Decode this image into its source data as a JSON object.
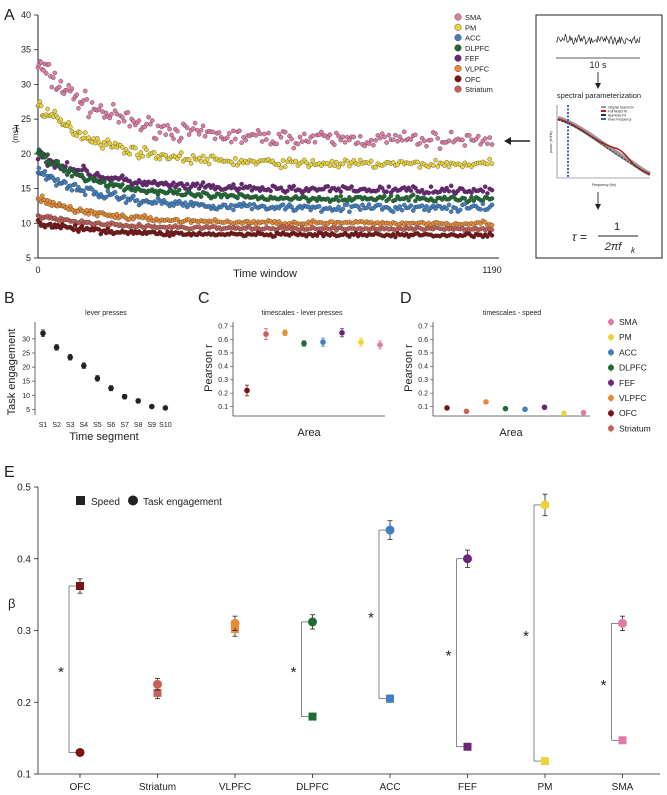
{
  "panels": {
    "a": "A",
    "b": "B",
    "c": "C",
    "d": "D",
    "e": "E"
  },
  "colors": {
    "SMA": "#e07aa7",
    "PM": "#ebd43a",
    "ACC": "#3f7fc2",
    "DLPFC": "#1e6b35",
    "FEF": "#6b2478",
    "VLPFC": "#e88b35",
    "OFC": "#7a1414",
    "Striatum": "#c86058"
  },
  "chart_data": [
    {
      "id": "A",
      "type": "scatter",
      "xlabel": "Time window",
      "ylabel_main": "τ",
      "ylabel_sub": "(ms)",
      "xlim": [
        0,
        1190
      ],
      "xticks": [
        "0",
        "1190"
      ],
      "ylim": [
        5,
        40
      ],
      "yticks": [
        5,
        10,
        15,
        20,
        25,
        30,
        35,
        40
      ],
      "legend": [
        "SMA",
        "PM",
        "ACC",
        "DLPFC",
        "FEF",
        "VLPFC",
        "OFC",
        "Striatum"
      ],
      "series": [
        {
          "name": "SMA",
          "start": 33,
          "end": 22,
          "spread": 2.4
        },
        {
          "name": "PM",
          "start": 27,
          "end": 18.5,
          "spread": 1.3
        },
        {
          "name": "FEF",
          "start": 20,
          "end": 14.8,
          "spread": 1.1
        },
        {
          "name": "DLPFC",
          "start": 20,
          "end": 13.5,
          "spread": 0.9
        },
        {
          "name": "ACC",
          "start": 17.5,
          "end": 12.2,
          "spread": 1.1
        },
        {
          "name": "VLPFC",
          "start": 13.5,
          "end": 10,
          "spread": 0.7
        },
        {
          "name": "Striatum",
          "start": 11,
          "end": 9.2,
          "spread": 0.5
        },
        {
          "name": "OFC",
          "start": 10,
          "end": 8.3,
          "spread": 0.6
        }
      ],
      "inset": {
        "signal_label": "10 s",
        "method": "spectral parameterization",
        "spectrum_legend": [
          "Original Spectrum",
          "Full Model Fit",
          "Aperiodic Fit",
          "Knee Frequency"
        ],
        "spectrum_xlabel": "Frequency (Hz)",
        "spectrum_ylabel": "power (V²/Hz)",
        "formula_lhs": "τ =",
        "formula_num": "1",
        "formula_den": "2πf",
        "formula_sub": "k"
      }
    },
    {
      "id": "B",
      "type": "scatter",
      "title": "lever presses",
      "xlabel": "Time segment",
      "ylabel": "Task engagement",
      "categories": [
        "S1",
        "S2",
        "S3",
        "S4",
        "S5",
        "S6",
        "S7",
        "S8",
        "S9",
        "S10"
      ],
      "values": [
        32,
        27,
        23.5,
        20.5,
        16,
        12.5,
        9.5,
        8,
        6,
        5.5
      ],
      "errors": [
        1.2,
        1.0,
        1.0,
        1.0,
        1.0,
        0.9,
        0.8,
        0.7,
        0.5,
        0.5
      ],
      "ylim": [
        3,
        36
      ],
      "yticks": [
        5,
        10,
        15,
        20,
        25,
        30
      ]
    },
    {
      "id": "C",
      "type": "scatter",
      "title": "timescales - lever presses",
      "xlabel": "Area",
      "ylabel": "Pearson r",
      "ylim": [
        0.03,
        0.73
      ],
      "yticks": [
        "0.1",
        "0.2",
        "0.3",
        "0.4",
        "0.5",
        "0.6",
        "0.7"
      ],
      "points": [
        {
          "area": "OFC",
          "value": 0.22,
          "error": 0.04
        },
        {
          "area": "Striatum",
          "value": 0.64,
          "error": 0.04
        },
        {
          "area": "VLPFC",
          "value": 0.65,
          "error": 0.02
        },
        {
          "area": "DLPFC",
          "value": 0.57,
          "error": 0.02
        },
        {
          "area": "ACC",
          "value": 0.58,
          "error": 0.03
        },
        {
          "area": "FEF",
          "value": 0.65,
          "error": 0.03
        },
        {
          "area": "PM",
          "value": 0.58,
          "error": 0.03
        },
        {
          "area": "SMA",
          "value": 0.56,
          "error": 0.03
        }
      ]
    },
    {
      "id": "D",
      "type": "scatter",
      "title": "timescales - speed",
      "xlabel": "Area",
      "ylabel": "Pearson r",
      "ylim": [
        0.03,
        0.73
      ],
      "yticks": [
        "0.1",
        "0.2",
        "0.3",
        "0.4",
        "0.5",
        "0.6",
        "0.7"
      ],
      "points": [
        {
          "area": "OFC",
          "value": 0.09,
          "error": 0.005
        },
        {
          "area": "Striatum",
          "value": 0.065,
          "error": 0.005
        },
        {
          "area": "VLPFC",
          "value": 0.135,
          "error": 0.005
        },
        {
          "area": "DLPFC",
          "value": 0.085,
          "error": 0.005
        },
        {
          "area": "ACC",
          "value": 0.08,
          "error": 0.005
        },
        {
          "area": "FEF",
          "value": 0.095,
          "error": 0.005
        },
        {
          "area": "PM",
          "value": 0.05,
          "error": 0.005
        },
        {
          "area": "SMA",
          "value": 0.055,
          "error": 0.005
        }
      ],
      "legend": [
        "SMA",
        "PM",
        "ACC",
        "DLPFC",
        "FEF",
        "VLPFC",
        "OFC",
        "Striatum"
      ]
    },
    {
      "id": "E",
      "type": "scatter",
      "ylabel": "β",
      "ylim": [
        0.1,
        0.5
      ],
      "yticks": [
        "0.1",
        "0.2",
        "0.3",
        "0.4",
        "0.5"
      ],
      "categories": [
        "OFC",
        "Striatum",
        "VLPFC",
        "DLPFC",
        "ACC",
        "FEF",
        "PM",
        "SMA"
      ],
      "legend": [
        "Speed",
        "Task engagement"
      ],
      "series": [
        {
          "name": "Speed",
          "marker": "square",
          "values": [
            0.362,
            0.213,
            0.302,
            0.18,
            0.205,
            0.138,
            0.118,
            0.147
          ],
          "errors": [
            0.01,
            0.008,
            0.01,
            0.004,
            0.005,
            0.003,
            0.003,
            0.003
          ]
        },
        {
          "name": "Task engagement",
          "marker": "circle",
          "values": [
            0.13,
            0.225,
            0.31,
            0.312,
            0.44,
            0.4,
            0.475,
            0.31
          ],
          "errors": [
            0.003,
            0.008,
            0.01,
            0.01,
            0.013,
            0.012,
            0.015,
            0.01
          ]
        }
      ],
      "significance": {
        "mark": "*",
        "areas": [
          "OFC",
          "DLPFC",
          "ACC",
          "FEF",
          "PM",
          "SMA"
        ]
      }
    }
  ]
}
